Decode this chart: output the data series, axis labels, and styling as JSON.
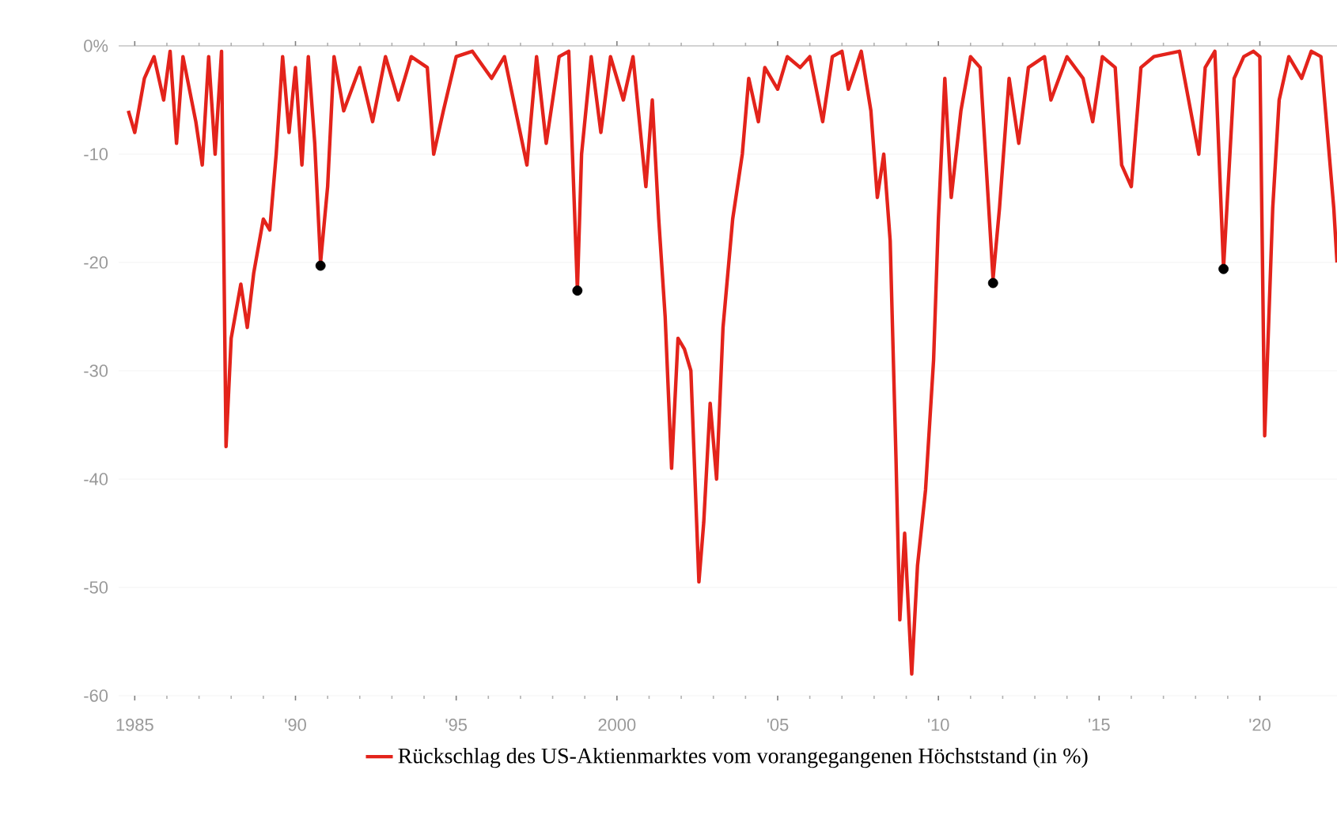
{
  "chart_data": {
    "type": "line",
    "xlim": [
      1984.5,
      2022.4
    ],
    "ylim": [
      -60,
      0
    ],
    "xticks": [
      1985,
      {
        "value": 1990,
        "label": "'90"
      },
      {
        "value": 1995,
        "label": "'95"
      },
      2000,
      {
        "value": 2005,
        "label": "'05"
      },
      {
        "value": 2010,
        "label": "'10"
      },
      {
        "value": 2015,
        "label": "'15"
      },
      {
        "value": 2020,
        "label": "'20"
      }
    ],
    "yticks": [
      {
        "value": 0,
        "label": "0%"
      },
      -10,
      -20,
      -30,
      -40,
      -50,
      -60
    ],
    "grid": "y",
    "legend": "bottom",
    "line_style": "solid",
    "series": [
      {
        "name": "Rückschlag des US-Aktienmarktes vom vorangegangenen Höchststand (in %)",
        "color": "#e3231b",
        "marker": "none",
        "x": [
          1984.8,
          1985.0,
          1985.3,
          1985.6,
          1985.9,
          1986.1,
          1986.3,
          1986.5,
          1986.9,
          1987.1,
          1987.3,
          1987.5,
          1987.7,
          1987.84,
          1988.0,
          1988.3,
          1988.5,
          1988.7,
          1989.0,
          1989.2,
          1989.4,
          1989.6,
          1989.8,
          1990.0,
          1990.2,
          1990.4,
          1990.6,
          1990.78,
          1991.0,
          1991.2,
          1991.5,
          1992.0,
          1992.4,
          1992.8,
          1993.2,
          1993.6,
          1994.1,
          1994.3,
          1994.6,
          1995.0,
          1995.5,
          1996.1,
          1996.5,
          1997.2,
          1997.5,
          1997.8,
          1998.2,
          1998.5,
          1998.77,
          1998.9,
          1999.2,
          1999.5,
          1999.8,
          2000.2,
          2000.5,
          2000.9,
          2001.1,
          2001.3,
          2001.5,
          2001.7,
          2001.9,
          2002.1,
          2002.3,
          2002.55,
          2002.7,
          2002.9,
          2003.1,
          2003.3,
          2003.6,
          2003.9,
          2004.1,
          2004.4,
          2004.6,
          2005.0,
          2005.3,
          2005.7,
          2006.0,
          2006.4,
          2006.7,
          2007.0,
          2007.2,
          2007.6,
          2007.9,
          2008.1,
          2008.3,
          2008.5,
          2008.68,
          2008.8,
          2008.95,
          2009.17,
          2009.35,
          2009.6,
          2009.85,
          2010.0,
          2010.2,
          2010.4,
          2010.7,
          2011.0,
          2011.3,
          2011.7,
          2011.9,
          2012.2,
          2012.5,
          2012.8,
          2013.3,
          2013.5,
          2014.0,
          2014.5,
          2014.8,
          2015.1,
          2015.5,
          2015.7,
          2016.0,
          2016.3,
          2016.7,
          2017.5,
          2018.1,
          2018.3,
          2018.6,
          2018.87,
          2019.2,
          2019.5,
          2019.8,
          2020.0,
          2020.15,
          2020.4,
          2020.6,
          2020.9,
          2021.3,
          2021.6,
          2021.9,
          2022.1,
          2022.3,
          2022.4
        ],
        "values": [
          -6,
          -8,
          -3,
          -1,
          -5,
          -0.5,
          -9,
          -1,
          -7,
          -11,
          -1,
          -10,
          -0.5,
          -37,
          -27,
          -22,
          -26,
          -21,
          -16,
          -17,
          -10,
          -1,
          -8,
          -2,
          -11,
          -1,
          -9,
          -20,
          -13,
          -1,
          -6,
          -2,
          -7,
          -1,
          -5,
          -1,
          -2,
          -10,
          -6,
          -1,
          -0.5,
          -3,
          -1,
          -11,
          -1,
          -9,
          -1,
          -0.5,
          -22.5,
          -10,
          -1,
          -8,
          -1,
          -5,
          -1,
          -13,
          -5,
          -16,
          -25,
          -39,
          -27,
          -28,
          -30,
          -49.5,
          -44,
          -33,
          -40,
          -26,
          -16,
          -10,
          -3,
          -7,
          -2,
          -4,
          -1,
          -2,
          -1,
          -7,
          -1,
          -0.5,
          -4,
          -0.5,
          -6,
          -14,
          -10,
          -18,
          -38,
          -53,
          -45,
          -58,
          -48,
          -41,
          -29,
          -16,
          -3,
          -14,
          -6,
          -1,
          -2,
          -21.5,
          -15,
          -3,
          -9,
          -2,
          -1,
          -5,
          -1,
          -3,
          -7,
          -1,
          -2,
          -11,
          -13,
          -2,
          -1,
          -0.5,
          -10,
          -2,
          -0.5,
          -20.5,
          -3,
          -1,
          -0.5,
          -1,
          -36,
          -15,
          -5,
          -1,
          -3,
          -0.5,
          -1,
          -8,
          -15,
          -20
        ]
      },
      {
        "type": "scatter",
        "color": "#000000",
        "marker": "circle",
        "x": [
          1990.78,
          1998.77,
          2011.7,
          2018.87
        ],
        "values": [
          -20.3,
          -22.6,
          -21.9,
          -20.6
        ]
      }
    ]
  }
}
